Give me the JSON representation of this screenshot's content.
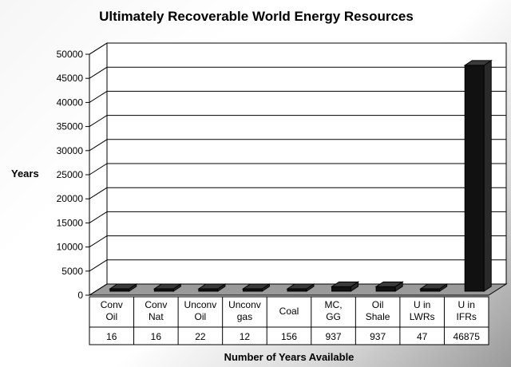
{
  "chart_data": {
    "type": "bar",
    "title": "Ultimately Recoverable World Energy Resources",
    "ylabel": "Years",
    "xlabel": "Number of Years Available",
    "ylim": [
      0,
      50000
    ],
    "yticks": [
      "0",
      "5000",
      "10000",
      "15000",
      "20000",
      "25000",
      "30000",
      "35000",
      "40000",
      "45000",
      "50000"
    ],
    "categories": [
      [
        "Conv",
        "Oil"
      ],
      [
        "Conv",
        "Nat"
      ],
      [
        "Unconv",
        "Oil"
      ],
      [
        "Unconv",
        "gas"
      ],
      [
        "Coal"
      ],
      [
        "MC,",
        "GG"
      ],
      [
        "Oil",
        "Shale"
      ],
      [
        "U in",
        "LWRs"
      ],
      [
        "U in",
        "IFRs"
      ]
    ],
    "values": [
      16,
      16,
      22,
      12,
      156,
      937,
      937,
      47,
      46875
    ],
    "value_labels": [
      "16",
      "16",
      "22",
      "12",
      "156",
      "937",
      "937",
      "47",
      "46875"
    ],
    "grid": true,
    "style": "3d-column",
    "bar_color": "#111111"
  }
}
